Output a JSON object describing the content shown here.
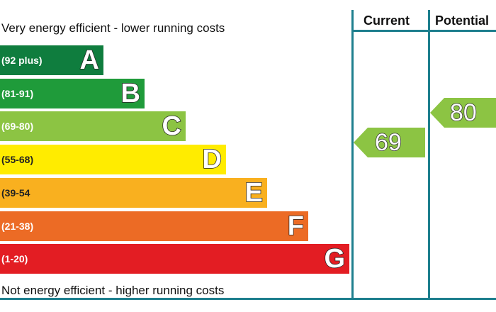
{
  "captions": {
    "top": "Very energy efficient - lower running costs",
    "bottom": "Not energy efficient - higher running costs"
  },
  "columns": {
    "current": "Current",
    "potential": "Potential"
  },
  "chart_data": {
    "type": "bar",
    "bands": [
      {
        "letter": "A",
        "range": "(92 plus)",
        "min": 92,
        "max": 100,
        "color": "#0f7d3e"
      },
      {
        "letter": "B",
        "range": "(81-91)",
        "min": 81,
        "max": 91,
        "color": "#1f9b3a"
      },
      {
        "letter": "C",
        "range": "(69-80)",
        "min": 69,
        "max": 80,
        "color": "#8cc443"
      },
      {
        "letter": "D",
        "range": "(55-68)",
        "min": 55,
        "max": 68,
        "color": "#ffec00"
      },
      {
        "letter": "E",
        "range": "(39-54",
        "min": 39,
        "max": 54,
        "color": "#f9b01f"
      },
      {
        "letter": "F",
        "range": "(21-38)",
        "min": 21,
        "max": 38,
        "color": "#ec6b25"
      },
      {
        "letter": "G",
        "range": "(1-20)",
        "min": 1,
        "max": 20,
        "color": "#e31d23"
      }
    ],
    "ratings": [
      {
        "name": "Current",
        "value": 69,
        "band": "C",
        "color": "#8cc443"
      },
      {
        "name": "Potential",
        "value": 80,
        "band": "C",
        "color": "#8cc443"
      }
    ]
  }
}
